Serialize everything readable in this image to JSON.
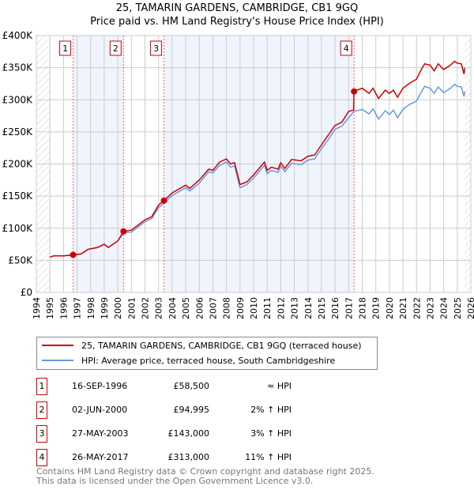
{
  "chart_data": {
    "type": "line",
    "title": "25, TAMARIN GARDENS, CAMBRIDGE, CB1 9GQ",
    "subtitle": "Price paid vs. HM Land Registry's House Price Index (HPI)",
    "xlim": [
      1994,
      2026
    ],
    "ylim": [
      0,
      400000
    ],
    "x_ticks": [
      "1994",
      "1995",
      "1996",
      "1997",
      "1998",
      "1999",
      "2000",
      "2001",
      "2002",
      "2003",
      "2004",
      "2005",
      "2006",
      "2007",
      "2008",
      "2009",
      "2010",
      "2011",
      "2012",
      "2013",
      "2014",
      "2015",
      "2016",
      "2017",
      "2018",
      "2019",
      "2020",
      "2021",
      "2022",
      "2023",
      "2024",
      "2025",
      "2026"
    ],
    "y_ticks": [
      {
        "v": 0,
        "l": "£0"
      },
      {
        "v": 50000,
        "l": "£50K"
      },
      {
        "v": 100000,
        "l": "£100K"
      },
      {
        "v": 150000,
        "l": "£150K"
      },
      {
        "v": 200000,
        "l": "£200K"
      },
      {
        "v": 250000,
        "l": "£250K"
      },
      {
        "v": 300000,
        "l": "£300K"
      },
      {
        "v": 350000,
        "l": "£350K"
      },
      {
        "v": 400000,
        "l": "£400K"
      }
    ],
    "grid": true,
    "data_range": [
      1995,
      2025.55
    ],
    "series": [
      {
        "name": "25, TAMARIN GARDENS, CAMBRIDGE, CB1 9GQ (terraced house)",
        "color": "#cc0000",
        "points": [
          [
            1995,
            55
          ],
          [
            1995.3,
            57
          ],
          [
            1996,
            57
          ],
          [
            1996.7,
            58.5
          ],
          [
            1997.3,
            60
          ],
          [
            1997.8,
            67
          ],
          [
            1998.5,
            70
          ],
          [
            1999,
            75
          ],
          [
            1999.3,
            70
          ],
          [
            2000,
            80
          ],
          [
            2000.42,
            95
          ],
          [
            2001,
            97
          ],
          [
            2002,
            113
          ],
          [
            2002.5,
            118
          ],
          [
            2003,
            136
          ],
          [
            2003.4,
            143
          ],
          [
            2004,
            155
          ],
          [
            2005,
            167
          ],
          [
            2005.3,
            162
          ],
          [
            2006,
            175
          ],
          [
            2006.7,
            192
          ],
          [
            2007,
            190
          ],
          [
            2007.5,
            203
          ],
          [
            2008,
            208
          ],
          [
            2008.3,
            200
          ],
          [
            2008.6,
            202
          ],
          [
            2009,
            168
          ],
          [
            2009.5,
            172
          ],
          [
            2010,
            183
          ],
          [
            2010.8,
            203
          ],
          [
            2011,
            190
          ],
          [
            2011.3,
            195
          ],
          [
            2011.8,
            192
          ],
          [
            2012,
            202
          ],
          [
            2012.3,
            193
          ],
          [
            2012.8,
            207
          ],
          [
            2013.5,
            205
          ],
          [
            2014,
            212
          ],
          [
            2014.5,
            214
          ],
          [
            2015,
            230
          ],
          [
            2015.5,
            245
          ],
          [
            2016,
            260
          ],
          [
            2016.5,
            265
          ],
          [
            2017,
            282
          ],
          [
            2017.37,
            284
          ],
          [
            2017.4,
            313
          ],
          [
            2018,
            318
          ],
          [
            2018.5,
            310
          ],
          [
            2018.8,
            318
          ],
          [
            2019.2,
            302
          ],
          [
            2019.7,
            315
          ],
          [
            2020,
            310
          ],
          [
            2020.3,
            315
          ],
          [
            2020.6,
            304
          ],
          [
            2021,
            318
          ],
          [
            2021.5,
            326
          ],
          [
            2022,
            332
          ],
          [
            2022.3,
            345
          ],
          [
            2022.6,
            356
          ],
          [
            2023,
            354
          ],
          [
            2023.3,
            345
          ],
          [
            2023.6,
            356
          ],
          [
            2024,
            347
          ],
          [
            2024.5,
            354
          ],
          [
            2024.8,
            360
          ],
          [
            2025,
            357
          ],
          [
            2025.3,
            356
          ],
          [
            2025.5,
            340
          ],
          [
            2025.55,
            350
          ]
        ]
      },
      {
        "name": "HPI: Average price, terraced house, South Cambridgeshire",
        "color": "#6699dd",
        "points": [
          [
            1995,
            55
          ],
          [
            1995.3,
            57
          ],
          [
            1996,
            57
          ],
          [
            1996.7,
            58.5
          ],
          [
            1997.3,
            60
          ],
          [
            1997.8,
            67
          ],
          [
            1998.5,
            70
          ],
          [
            1999,
            75
          ],
          [
            1999.3,
            70
          ],
          [
            2000,
            80
          ],
          [
            2000.42,
            93
          ],
          [
            2001,
            94
          ],
          [
            2002,
            110
          ],
          [
            2002.5,
            115
          ],
          [
            2003,
            132
          ],
          [
            2003.4,
            139
          ],
          [
            2004,
            151
          ],
          [
            2005,
            163
          ],
          [
            2005.3,
            158
          ],
          [
            2006,
            170
          ],
          [
            2006.7,
            188
          ],
          [
            2007,
            186
          ],
          [
            2007.5,
            198
          ],
          [
            2008,
            203
          ],
          [
            2008.3,
            195
          ],
          [
            2008.6,
            197
          ],
          [
            2009,
            163
          ],
          [
            2009.5,
            168
          ],
          [
            2010,
            178
          ],
          [
            2010.8,
            198
          ],
          [
            2011,
            185
          ],
          [
            2011.3,
            190
          ],
          [
            2011.8,
            187
          ],
          [
            2012,
            197
          ],
          [
            2012.3,
            188
          ],
          [
            2012.8,
            201
          ],
          [
            2013.5,
            199
          ],
          [
            2014,
            206
          ],
          [
            2014.5,
            208
          ],
          [
            2015,
            224
          ],
          [
            2015.5,
            238
          ],
          [
            2016,
            254
          ],
          [
            2016.5,
            259
          ],
          [
            2017,
            272
          ],
          [
            2017.4,
            282
          ],
          [
            2018,
            285
          ],
          [
            2018.5,
            278
          ],
          [
            2018.8,
            286
          ],
          [
            2019.2,
            270
          ],
          [
            2019.7,
            283
          ],
          [
            2020,
            277
          ],
          [
            2020.3,
            284
          ],
          [
            2020.6,
            272
          ],
          [
            2021,
            285
          ],
          [
            2021.5,
            293
          ],
          [
            2022,
            298
          ],
          [
            2022.3,
            310
          ],
          [
            2022.6,
            321
          ],
          [
            2023,
            318
          ],
          [
            2023.3,
            310
          ],
          [
            2023.6,
            320
          ],
          [
            2024,
            311
          ],
          [
            2024.5,
            318
          ],
          [
            2024.8,
            324
          ],
          [
            2025,
            321
          ],
          [
            2025.3,
            320
          ],
          [
            2025.5,
            305
          ],
          [
            2025.55,
            313
          ]
        ]
      }
    ],
    "transactions": [
      {
        "n": "1",
        "x": 1996.71,
        "price": 58500,
        "date": "16-SEP-1996",
        "price_label": "£58,500",
        "hpi": "≈ HPI"
      },
      {
        "n": "2",
        "x": 2000.42,
        "price": 94995,
        "date": "02-JUN-2000",
        "price_label": "£94,995",
        "hpi": "2% ↑ HPI"
      },
      {
        "n": "3",
        "x": 2003.4,
        "price": 143000,
        "date": "27-MAY-2003",
        "price_label": "£143,000",
        "hpi": "3% ↑ HPI"
      },
      {
        "n": "4",
        "x": 2017.4,
        "price": 313000,
        "date": "26-MAY-2017",
        "price_label": "£313,000",
        "hpi": "11% ↑ HPI"
      }
    ]
  },
  "footer": {
    "line1": "Contains HM Land Registry data © Crown copyright and database right 2025.",
    "line2": "This data is licensed under the Open Government Licence v3.0."
  }
}
